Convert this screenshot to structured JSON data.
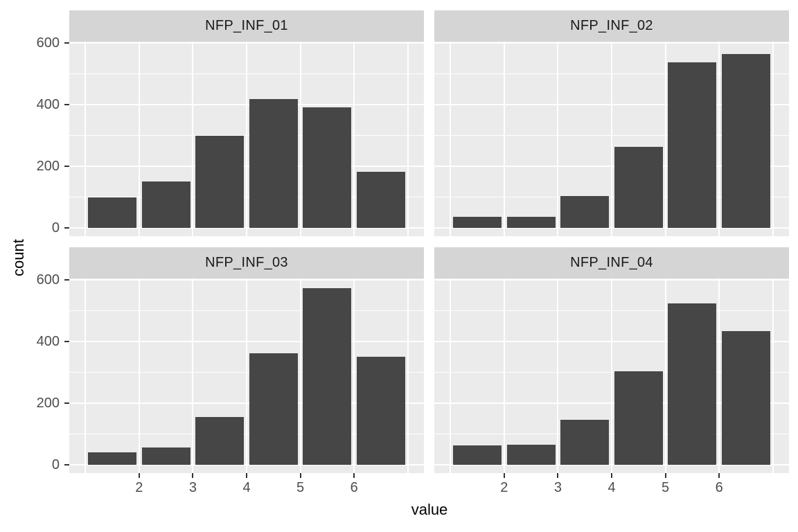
{
  "chart_data": {
    "type": "bar",
    "subtype": "faceted-histogram",
    "title": "",
    "xlabel": "value",
    "ylabel": "count",
    "x_ticks": [
      2,
      3,
      4,
      5,
      6
    ],
    "x_tick_labels": [
      "2",
      "3",
      "4",
      "5",
      "6"
    ],
    "y_ticks": [
      0,
      200,
      400,
      600
    ],
    "y_tick_labels": [
      "0",
      "200",
      "400",
      "600"
    ],
    "y_minor_gridlines": [
      100,
      300,
      500
    ],
    "x_gridlines": [
      1,
      2,
      3,
      4,
      5,
      6,
      7
    ],
    "x_range": [
      0.7,
      7.3
    ],
    "y_range": [
      -29,
      606
    ],
    "bar_centers": [
      1.5,
      2.5,
      3.5,
      4.5,
      5.5,
      6.5
    ],
    "bar_width": 0.9,
    "grid": true,
    "legend_position": "none",
    "facet_layout": {
      "rows": 2,
      "cols": 2
    },
    "facets": [
      {
        "label": "NFP_INF_01",
        "values": [
          100,
          151,
          298,
          417,
          392,
          182
        ]
      },
      {
        "label": "NFP_INF_02",
        "values": [
          37,
          37,
          103,
          263,
          537,
          565
        ]
      },
      {
        "label": "NFP_INF_03",
        "values": [
          40,
          57,
          154,
          362,
          573,
          351
        ]
      },
      {
        "label": "NFP_INF_04",
        "values": [
          63,
          66,
          145,
          303,
          524,
          433
        ]
      }
    ]
  },
  "colors": {
    "figure_bg": "#FFFFFF",
    "panel_bg": "#EBEBEB",
    "strip_bg": "#D5D5D5",
    "bar_fill": "#464646",
    "gridline": "#FFFFFF",
    "tick_text": "#4D4D4D",
    "strip_text": "#1A1A1A",
    "axis_title_text": "#000000",
    "tick_mark": "#333333"
  }
}
